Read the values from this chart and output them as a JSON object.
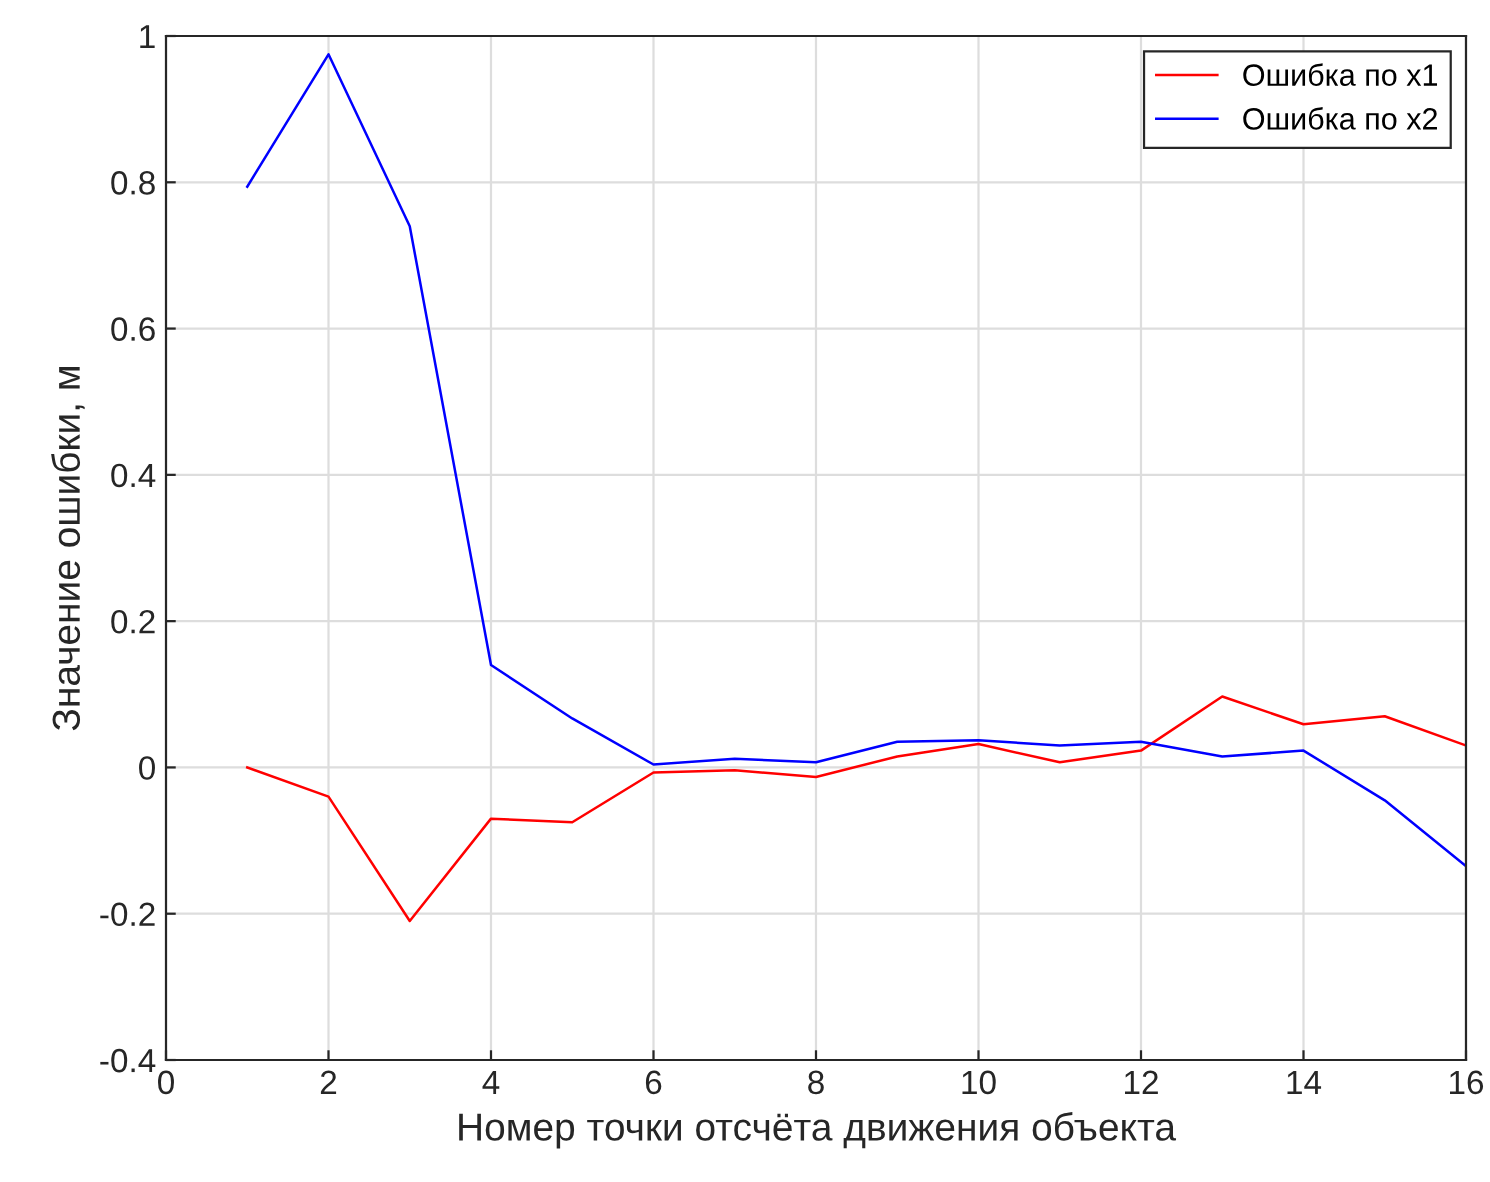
{
  "chart_data": {
    "type": "line",
    "xlabel": "Номер точки отсчёта движения объекта",
    "ylabel": "Значение ошибки, м",
    "x": [
      1,
      2,
      3,
      4,
      5,
      6,
      7,
      8,
      9,
      10,
      11,
      12,
      13,
      14,
      15,
      16
    ],
    "series": [
      {
        "name": "Ошибка по x1",
        "color": "#ff0000",
        "values": [
          0.0,
          -0.04,
          -0.21,
          -0.07,
          -0.075,
          -0.007,
          -0.004,
          -0.013,
          0.015,
          0.032,
          0.007,
          0.023,
          0.097,
          0.059,
          0.07,
          0.03
        ]
      },
      {
        "name": "Ошибка по x2",
        "color": "#0000ff",
        "values": [
          0.794,
          0.975,
          0.74,
          0.14,
          0.067,
          0.004,
          0.012,
          0.007,
          0.035,
          0.037,
          0.03,
          0.035,
          0.015,
          0.023,
          -0.045,
          -0.135
        ]
      }
    ],
    "xlim": [
      0,
      16
    ],
    "xticks": [
      0,
      2,
      4,
      6,
      8,
      10,
      12,
      14,
      16
    ],
    "ylim": [
      -0.4,
      1
    ],
    "yticks": [
      -0.4,
      -0.2,
      0,
      0.2,
      0.4,
      0.6,
      0.8,
      1
    ],
    "grid": true,
    "legend": "top right",
    "marker": "none",
    "line_style": "solid"
  }
}
